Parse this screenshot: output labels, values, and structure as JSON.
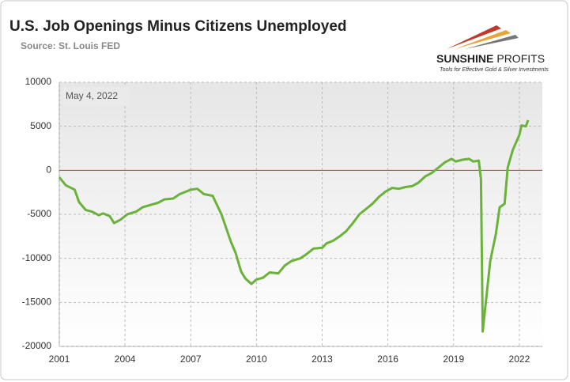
{
  "chart_data": {
    "type": "line",
    "title": "U.S. Job Openings Minus Citizens Unemployed",
    "subtitle": "Source: St. Louis FED",
    "annotation": "May 4, 2022",
    "color": "#6ab23a",
    "zero_line_color": "#c0392b",
    "grid": true,
    "xlim": [
      2001,
      2023.05
    ],
    "ylim": [
      -20000,
      10000
    ],
    "xticks": [
      2001,
      2004,
      2007,
      2010,
      2013,
      2016,
      2019,
      2022
    ],
    "yticks": [
      -20000,
      -15000,
      -10000,
      -5000,
      0,
      5000,
      10000
    ],
    "x": [
      2001.0,
      2001.3,
      2001.7,
      2001.9,
      2002.2,
      2002.5,
      2002.8,
      2003.0,
      2003.3,
      2003.5,
      2003.8,
      2004.1,
      2004.5,
      2004.8,
      2005.2,
      2005.5,
      2005.8,
      2006.2,
      2006.5,
      2006.8,
      2007.0,
      2007.3,
      2007.6,
      2008.0,
      2008.4,
      2008.83,
      2009.05,
      2009.3,
      2009.5,
      2009.77,
      2010.0,
      2010.3,
      2010.6,
      2011.0,
      2011.3,
      2011.6,
      2012.0,
      2012.3,
      2012.6,
      2013.0,
      2013.2,
      2013.5,
      2013.8,
      2014.1,
      2014.4,
      2014.7,
      2015.0,
      2015.3,
      2015.6,
      2015.9,
      2016.2,
      2016.5,
      2016.8,
      2017.1,
      2017.4,
      2017.7,
      2018.0,
      2018.3,
      2018.6,
      2018.9,
      2019.1,
      2019.4,
      2019.7,
      2019.9,
      2020.15,
      2020.25,
      2020.33,
      2020.67,
      2020.93,
      2021.1,
      2021.33,
      2021.47,
      2021.7,
      2022.0,
      2022.1,
      2022.3,
      2022.4
    ],
    "values": [
      -800,
      -1700,
      -2200,
      -3600,
      -4500,
      -4700,
      -5100,
      -4900,
      -5200,
      -6000,
      -5600,
      -5000,
      -4700,
      -4200,
      -3900,
      -3700,
      -3300,
      -3200,
      -2700,
      -2400,
      -2200,
      -2100,
      -2700,
      -2900,
      -5000,
      -8100,
      -9400,
      -11500,
      -12300,
      -12900,
      -12400,
      -12200,
      -11600,
      -11700,
      -10800,
      -10300,
      -10000,
      -9500,
      -8900,
      -8800,
      -8300,
      -8000,
      -7500,
      -6900,
      -6000,
      -5000,
      -4400,
      -3800,
      -3000,
      -2400,
      -2000,
      -2100,
      -1900,
      -1800,
      -1400,
      -700,
      -300,
      300,
      900,
      1300,
      1000,
      1200,
      1300,
      1000,
      1100,
      -1000,
      -18300,
      -10300,
      -7200,
      -4200,
      -3800,
      300,
      2300,
      4000,
      5100,
      5000,
      5700
    ]
  },
  "logo": {
    "name_bold": "SUNSHINE",
    "name_light": "PROFITS",
    "tagline": "Tools for Effective Gold & Silver Investments"
  }
}
